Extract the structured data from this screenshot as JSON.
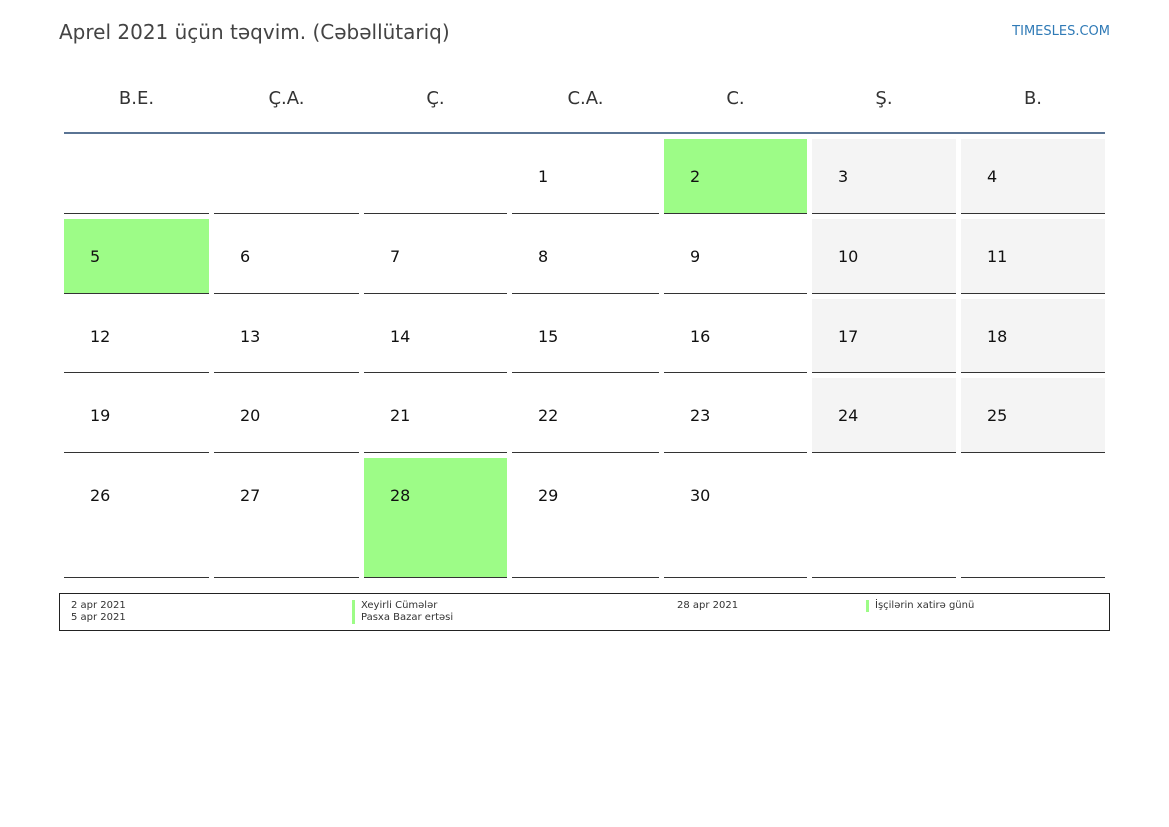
{
  "header": {
    "title": "Aprel 2021 üçün təqvim. (Cəbəllütariq)",
    "brand": "TIMESLES.COM"
  },
  "weekdays": [
    "B.E.",
    "Ç.A.",
    "Ç.",
    "C.A.",
    "C.",
    "Ş.",
    "B."
  ],
  "weeks": [
    [
      "",
      "",
      "",
      "1",
      "2",
      "3",
      "4"
    ],
    [
      "5",
      "6",
      "7",
      "8",
      "9",
      "10",
      "11"
    ],
    [
      "12",
      "13",
      "14",
      "15",
      "16",
      "17",
      "18"
    ],
    [
      "19",
      "20",
      "21",
      "22",
      "23",
      "24",
      "25"
    ],
    [
      "26",
      "27",
      "28",
      "29",
      "30",
      "",
      ""
    ]
  ],
  "holidays": [
    "2",
    "5",
    "28"
  ],
  "colors": {
    "holiday": "#9dfc87",
    "weekend": "#f4f4f4",
    "header_rule": "#5a7494",
    "brand": "#2f7ab6"
  },
  "legend": [
    {
      "date": "2 apr 2021",
      "name": "Xeyirli Cümələr"
    },
    {
      "date": "5 apr 2021",
      "name": "Pasxa Bazar ertəsi"
    },
    {
      "date": "28 apr 2021",
      "name": "İşçilərin xatirə günü"
    }
  ]
}
